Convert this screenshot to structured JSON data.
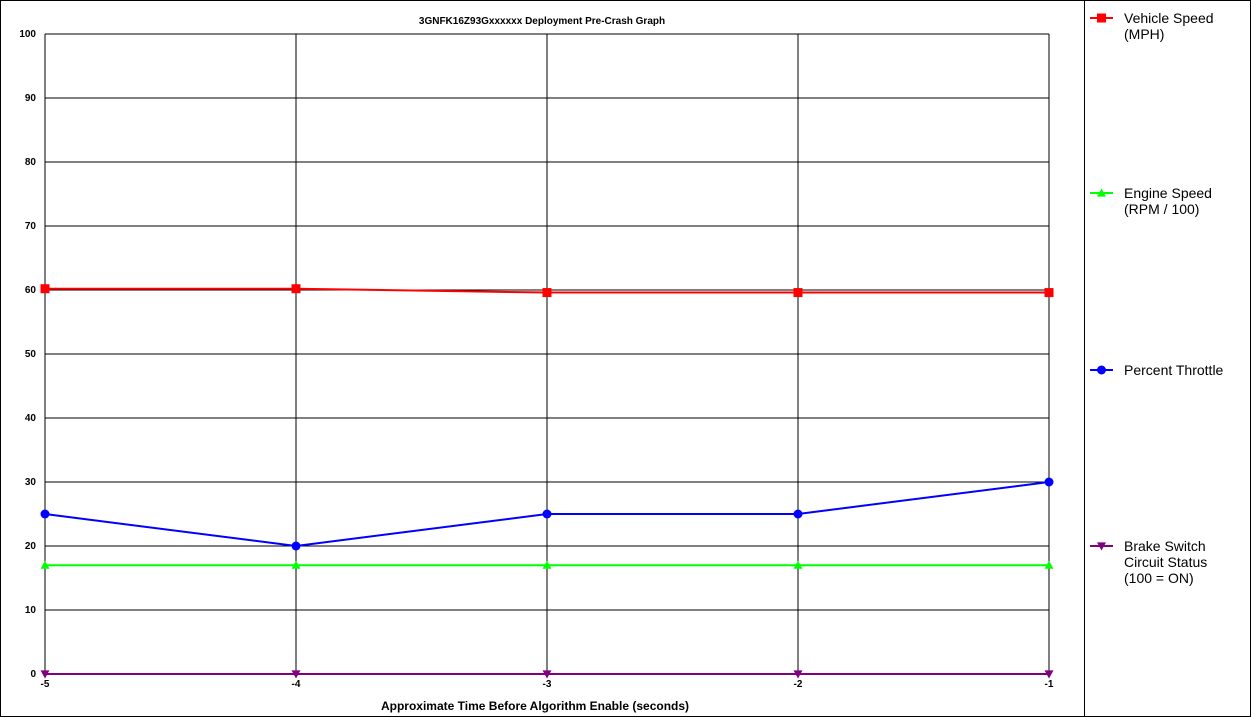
{
  "chart_data": {
    "type": "line",
    "title": "3GNFK16Z93Gxxxxxx Deployment Pre-Crash Graph",
    "xlabel": "Approximate Time Before Algorithm Enable (seconds)",
    "ylabel": "",
    "x": [
      -5,
      -4,
      -3,
      -2,
      -1
    ],
    "x_tick_labels": [
      "-5",
      "-4",
      "-3",
      "-2",
      "-1"
    ],
    "xlim": [
      -5,
      -1
    ],
    "ylim": [
      0,
      100
    ],
    "y_ticks": [
      0,
      10,
      20,
      30,
      40,
      50,
      60,
      70,
      80,
      90,
      100
    ],
    "y_tick_labels": [
      "0",
      "10",
      "20",
      "30",
      "40",
      "50",
      "60",
      "70",
      "80",
      "90",
      "100"
    ],
    "grid": true,
    "legend_position": "right",
    "series": [
      {
        "name": "Vehicle Speed (MPH)",
        "legend_lines": [
          "Vehicle Speed",
          "(MPH)"
        ],
        "values": [
          60.2,
          60.2,
          59.6,
          59.6,
          59.6
        ],
        "color": "#ff0000",
        "marker": "square"
      },
      {
        "name": "Engine Speed (RPM / 100)",
        "legend_lines": [
          "Engine Speed",
          "(RPM / 100)"
        ],
        "values": [
          17,
          17,
          17,
          17,
          17
        ],
        "color": "#00ff00",
        "marker": "triangle-up"
      },
      {
        "name": "Percent Throttle",
        "legend_lines": [
          "Percent Throttle"
        ],
        "values": [
          25,
          20,
          25,
          25,
          30
        ],
        "color": "#0000ff",
        "marker": "circle"
      },
      {
        "name": "Brake Switch Circuit Status (100 = ON)",
        "legend_lines": [
          "Brake Switch",
          "Circuit Status",
          "(100 = ON)"
        ],
        "values": [
          0,
          0,
          0,
          0,
          0
        ],
        "color": "#800080",
        "marker": "triangle-down"
      }
    ]
  }
}
